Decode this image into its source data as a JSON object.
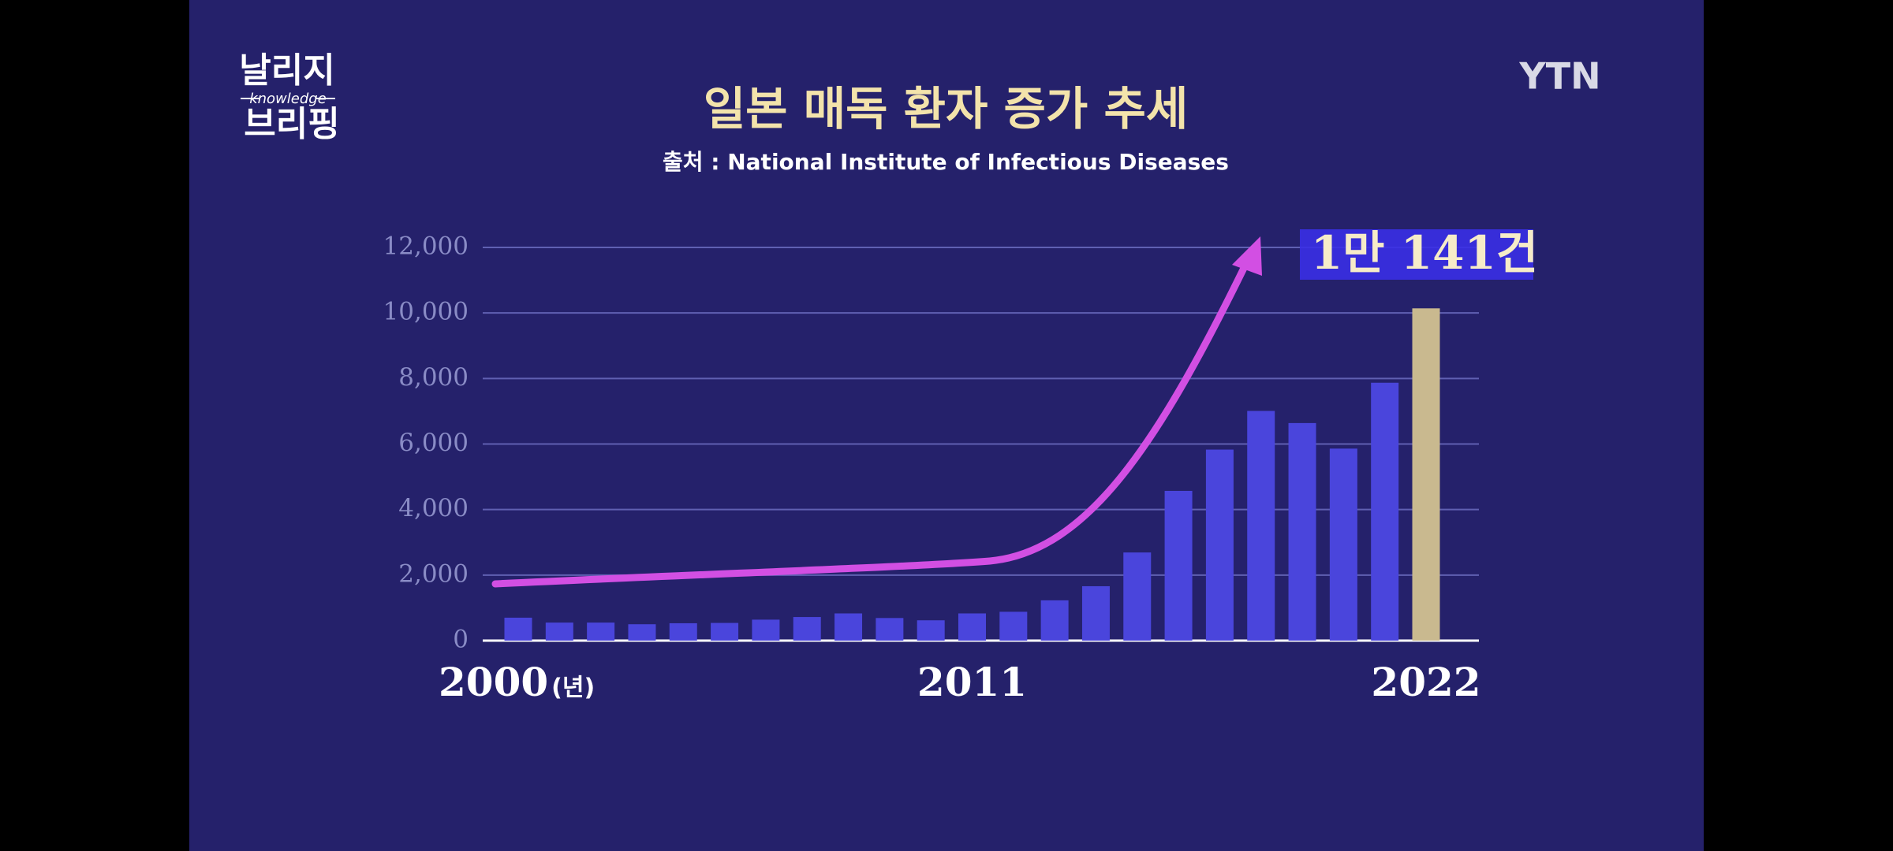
{
  "logo": {
    "top": "날리지",
    "middle": "knowledge",
    "bottom": "브리핑"
  },
  "channel": "YTN",
  "chart_data": {
    "type": "bar",
    "title": "일본 매독 환자 증가 추세",
    "subtitle": "출처 : National Institute of Infectious Diseases",
    "x_unit": "(년)",
    "categories": [
      "2000",
      null,
      null,
      null,
      null,
      null,
      null,
      null,
      null,
      null,
      null,
      "2011",
      null,
      null,
      null,
      null,
      null,
      null,
      null,
      null,
      null,
      null,
      "2022"
    ],
    "values": [
      700,
      550,
      550,
      500,
      530,
      540,
      640,
      720,
      830,
      690,
      620,
      830,
      880,
      1230,
      1660,
      2690,
      4570,
      5830,
      7010,
      6640,
      5860,
      7870,
      10141
    ],
    "color": "#4a45dc",
    "highlight_color": "#c9b98f",
    "annotation": "1만 141건",
    "ylim": [
      0,
      12000
    ],
    "yticks": [
      0,
      {
        "value": 2000,
        "label": "2,000"
      },
      {
        "value": 4000,
        "label": "4,000"
      },
      {
        "value": 6000,
        "label": "6,000"
      },
      {
        "value": 8000,
        "label": "8,000"
      },
      {
        "value": 10000,
        "label": "10,000"
      },
      {
        "value": 12000,
        "label": "12,000"
      }
    ],
    "grid": true
  }
}
